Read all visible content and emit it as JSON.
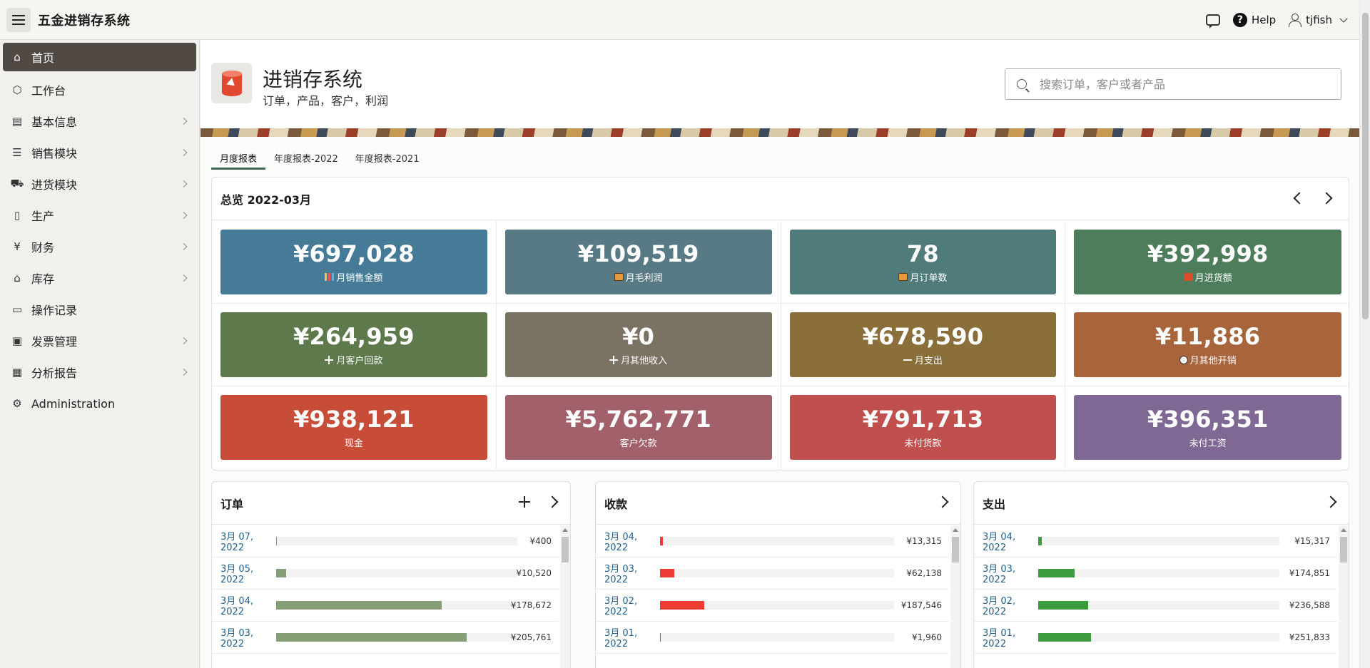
{
  "app": {
    "title": "五金进销存系统"
  },
  "topbar": {
    "help": "Help",
    "user": "tjfish"
  },
  "sidebar": {
    "items": [
      {
        "label": "首页",
        "icon": "home-icon",
        "active": true,
        "has_children": false
      },
      {
        "label": "工作台",
        "icon": "cube-icon",
        "has_children": false
      },
      {
        "label": "基本信息",
        "icon": "address-book-icon",
        "has_children": true
      },
      {
        "label": "销售模块",
        "icon": "list-icon",
        "has_children": true
      },
      {
        "label": "进货模块",
        "icon": "truck-icon",
        "has_children": true
      },
      {
        "label": "生产",
        "icon": "clipboard-icon",
        "has_children": true
      },
      {
        "label": "财务",
        "icon": "yen-icon",
        "has_children": true
      },
      {
        "label": "库存",
        "icon": "warehouse-icon",
        "has_children": true
      },
      {
        "label": "操作记录",
        "icon": "file-icon",
        "has_children": false
      },
      {
        "label": "发票管理",
        "icon": "archive-icon",
        "has_children": true
      },
      {
        "label": "分析报告",
        "icon": "table-icon",
        "has_children": true
      },
      {
        "label": "Administration",
        "icon": "gear-icon",
        "has_children": false
      }
    ]
  },
  "hero": {
    "title": "进销存系统",
    "subtitle": "订单，产品，客户，利润",
    "search_placeholder": "搜索订单，客户或者产品"
  },
  "tabs": [
    {
      "label": "月度报表",
      "active": true
    },
    {
      "label": "年度报表-2022"
    },
    {
      "label": "年度报表-2021"
    }
  ],
  "overview": {
    "title": "总览 2022-03月",
    "tiles": [
      {
        "value": "¥697,028",
        "label": "月销售金额",
        "icon": "chart-icon",
        "color": "#457b97"
      },
      {
        "value": "¥109,519",
        "label": "月毛利润",
        "icon": "briefcase-icon",
        "color": "#587a84"
      },
      {
        "value": "78",
        "label": "月订单数",
        "icon": "briefcase-icon",
        "color": "#4f7c7a"
      },
      {
        "value": "¥392,998",
        "label": "月进货额",
        "icon": "truck-icon",
        "color": "#4d7d5a"
      },
      {
        "value": "¥264,959",
        "label": "月客户回款",
        "icon": "plus-icon",
        "color": "#5e7a4c"
      },
      {
        "value": "¥0",
        "label": "月其他收入",
        "icon": "plus-icon",
        "color": "#7a7262"
      },
      {
        "value": "¥678,590",
        "label": "月支出",
        "icon": "minus-icon",
        "color": "#8a6f3a"
      },
      {
        "value": "¥11,886",
        "label": "月其他开销",
        "icon": "no-entry-icon",
        "color": "#a8643b"
      },
      {
        "value": "¥938,121",
        "label": "现金",
        "icon": "",
        "color": "#c84d38"
      },
      {
        "value": "¥5,762,771",
        "label": "客户欠款",
        "icon": "",
        "color": "#a2606a"
      },
      {
        "value": "¥791,713",
        "label": "未付货款",
        "icon": "",
        "color": "#c0504e"
      },
      {
        "value": "¥396,351",
        "label": "未付工资",
        "icon": "",
        "color": "#7f6894"
      }
    ]
  },
  "panels": {
    "orders": {
      "title": "订单",
      "bar_color": "#869e75",
      "max": 260000,
      "rows": [
        {
          "date": "3月 07, 2022",
          "value": 400,
          "label": "¥400"
        },
        {
          "date": "3月 05, 2022",
          "value": 10520,
          "label": "¥10,520"
        },
        {
          "date": "3月 04, 2022",
          "value": 178672,
          "label": "¥178,672"
        },
        {
          "date": "3月 03, 2022",
          "value": 205761,
          "label": "¥205,761"
        }
      ]
    },
    "receipts": {
      "title": "收款",
      "bar_color": "#ee3c35",
      "max": 1000000,
      "rows": [
        {
          "date": "3月 04, 2022",
          "value": 13315,
          "label": "¥13,315"
        },
        {
          "date": "3月 03, 2022",
          "value": 62138,
          "label": "¥62,138"
        },
        {
          "date": "3月 02, 2022",
          "value": 187546,
          "label": "¥187,546"
        },
        {
          "date": "3月 01, 2022",
          "value": 1960,
          "label": "¥1,960"
        }
      ]
    },
    "expenses": {
      "title": "支出",
      "bar_color": "#3c9b3f",
      "max": 1150000,
      "rows": [
        {
          "date": "3月 04, 2022",
          "value": 15317,
          "label": "¥15,317"
        },
        {
          "date": "3月 03, 2022",
          "value": 174851,
          "label": "¥174,851"
        },
        {
          "date": "3月 02, 2022",
          "value": 236588,
          "label": "¥236,588"
        },
        {
          "date": "3月 01, 2022",
          "value": 251833,
          "label": "¥251,833"
        }
      ]
    }
  }
}
